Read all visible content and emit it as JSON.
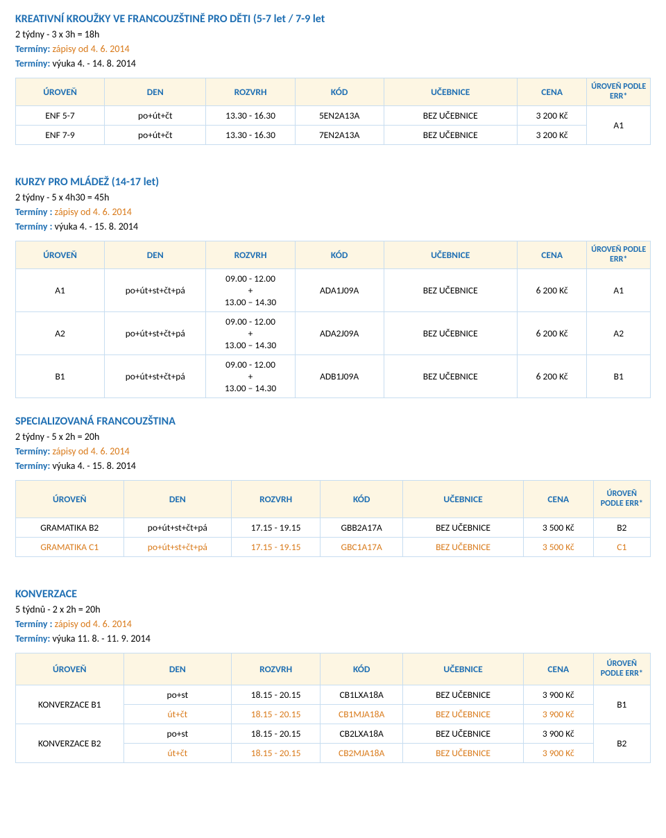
{
  "section1": {
    "title": "KREATIVNÍ KROUŽKY VE FRANCOUZŠTINĚ PRO DĚTI (5-7 let / 7-9 let",
    "line1": "2 týdny - 3 x 3h = 18h",
    "line2a": "Termíny:",
    "line2b": " zápisy od 4. 6. 2014",
    "line3a": "Termíny:",
    "line3b": " výuka 4. - 14. 8. 2014",
    "headers": [
      "ÚROVEŇ",
      "DEN",
      "ROZVRH",
      "KÓD",
      "UČEBNICE",
      "CENA",
      "ÚROVEŇ PODLE ERR*"
    ],
    "row1": [
      "ENF 5-7",
      "po+út+čt",
      "13.30 - 16.30",
      "5EN2A13A",
      "BEZ UČEBNICE",
      "3 200 Kč"
    ],
    "row2": [
      "ENF 7-9",
      "po+út+čt",
      "13.30 - 16.30",
      "7EN2A13A",
      "BEZ UČEBNICE",
      "3 200 Kč"
    ],
    "err": "A1"
  },
  "section2": {
    "title": "KURZY PRO MLÁDEŽ (14-17 let)",
    "line1": "2 týdny - 5 x 4h30 = 45h",
    "line2a": "Termíny :",
    "line2b": " zápisy od 4. 6. 2014",
    "line3a": "Termíny :",
    "line3b": " výuka 4. - 15. 8. 2014",
    "headers": [
      "ÚROVEŇ",
      "DEN",
      "ROZVRH",
      "KÓD",
      "UČEBNICE",
      "CENA",
      "ÚROVEŇ PODLE ERR*"
    ],
    "rozvrh": "09.00 - 12.00\n+\n13.00 – 14.30",
    "row1": [
      "A1",
      "po+út+st+čt+pá",
      "",
      "ADA1J09A",
      "BEZ UČEBNICE",
      "6 200 Kč",
      "A1"
    ],
    "row2": [
      "A2",
      "po+út+st+čt+pá",
      "",
      "ADA2J09A",
      "BEZ UČEBNICE",
      "6 200 Kč",
      "A2"
    ],
    "row3": [
      "B1",
      "po+út+st+čt+pá",
      "",
      "ADB1J09A",
      "BEZ UČEBNICE",
      "6 200 Kč",
      "B1"
    ]
  },
  "section3": {
    "title": "SPECIALIZOVANÁ FRANCOUZŠTINA",
    "line1": "2 týdny - 5 x 2h = 20h",
    "line2a": "Termíny:",
    "line2b": " zápisy od 4. 6. 2014",
    "line3a": "Termíny:",
    "line3b": " výuka 4. - 15. 8. 2014",
    "headers": [
      "ÚROVEŇ",
      "DEN",
      "ROZVRH",
      "KÓD",
      "UČEBNICE",
      "CENA",
      "ÚROVEŇ PODLE ERR*"
    ],
    "row1": [
      "GRAMATIKA B2",
      "po+út+st+čt+pá",
      "17.15 - 19.15",
      "GBB2A17A",
      "BEZ UČEBNICE",
      "3 500 Kč",
      "B2"
    ],
    "row2": [
      "GRAMATIKA C1",
      "po+út+st+čt+pá",
      "17.15 - 19.15",
      "GBC1A17A",
      "BEZ UČEBNICE",
      "3 500 Kč",
      "C1"
    ]
  },
  "section4": {
    "title": "KONVERZACE",
    "line1": "5 týdnů - 2 x 2h = 20h",
    "line2a": "Termíny :",
    "line2b": " zápisy od 4. 6. 2014",
    "line3a": "Termíny:",
    "line3b": " výuka 11. 8. - 11. 9. 2014",
    "headers": [
      "ÚROVEŇ",
      "DEN",
      "ROZVRH",
      "KÓD",
      "UČEBNICE",
      "CENA",
      "ÚROVEŇ PODLE ERR*"
    ],
    "left1": "KONVERZACE B1",
    "left2": "KONVERZACE B2",
    "row1": [
      "po+st",
      "18.15 - 20.15",
      "CB1LXA18A",
      "BEZ UČEBNICE",
      "3 900 Kč"
    ],
    "row2": [
      "út+čt",
      "18.15 - 20.15",
      "CB1MJA18A",
      "BEZ UČEBNICE",
      "3 900 Kč"
    ],
    "err1": "B1",
    "row3": [
      "po+st",
      "18.15 - 20.15",
      "CB2LXA18A",
      "BEZ UČEBNICE",
      "3 900 Kč"
    ],
    "row4": [
      "út+čt",
      "18.15 - 20.15",
      "CB2MJA18A",
      "BEZ UČEBNICE",
      "3 900 Kč"
    ],
    "err2": "B2"
  }
}
